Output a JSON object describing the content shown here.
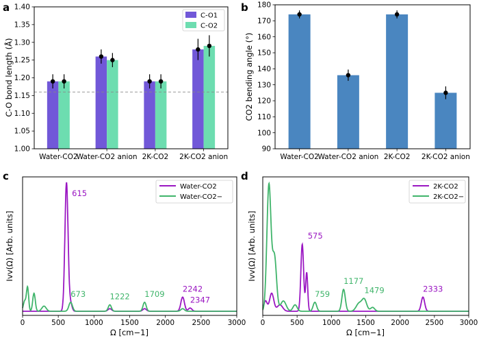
{
  "chart_data": [
    {
      "panel": "a",
      "type": "bar",
      "categories": [
        "Water-CO2",
        "Water-CO2 anion",
        "2K-CO2",
        "2K-CO2 anion"
      ],
      "series": [
        {
          "name": "C-O1",
          "color": "#7158d8",
          "values": [
            1.19,
            1.26,
            1.19,
            1.28
          ],
          "errors": [
            0.02,
            0.02,
            0.02,
            0.03
          ]
        },
        {
          "name": "C-O2",
          "color": "#6dddb0",
          "values": [
            1.19,
            1.25,
            1.19,
            1.29
          ],
          "errors": [
            0.02,
            0.02,
            0.02,
            0.03
          ]
        }
      ],
      "ylabel": "C-O bond length (Å)",
      "ylim": [
        1.0,
        1.4
      ],
      "yticks": [
        "1.00",
        "1.05",
        "1.10",
        "1.15",
        "1.20",
        "1.25",
        "1.30",
        "1.35",
        "1.40"
      ],
      "reference_line": 1.16,
      "legend_position": "top-right"
    },
    {
      "panel": "b",
      "type": "bar",
      "categories": [
        "Water-CO2",
        "Water-CO2 anion",
        "2K-CO2",
        "2K-CO2 anion"
      ],
      "series": [
        {
          "name": "CO2 bending angle",
          "color": "#4a86c0",
          "values": [
            174,
            136,
            174,
            125
          ],
          "errors": [
            2.5,
            3.5,
            2.5,
            4
          ]
        }
      ],
      "ylabel": "CO2 bending angle (°)",
      "ylim": [
        90,
        180
      ],
      "yticks": [
        "90",
        "100",
        "110",
        "120",
        "130",
        "140",
        "150",
        "160",
        "170",
        "180"
      ]
    },
    {
      "panel": "c",
      "type": "line",
      "xlabel": "Ω [cm−1]",
      "ylabel": "Ivv(Ω) [Arb. units]",
      "xlim": [
        0,
        3000
      ],
      "xticks": [
        "0",
        "500",
        "1000",
        "1500",
        "2000",
        "2500",
        "3000"
      ],
      "series": [
        {
          "name": "Water-CO2",
          "color": "#9a16c2",
          "peaks": [
            [
              615,
              1.0,
              22
            ],
            [
              673,
              0.06,
              20
            ],
            [
              1222,
              0.02,
              25
            ],
            [
              1709,
              0.02,
              25
            ],
            [
              2242,
              0.11,
              25
            ],
            [
              2347,
              0.025,
              25
            ]
          ]
        },
        {
          "name": "Water-CO2−",
          "color": "#3fb46a",
          "peaks": [
            [
              30,
              0.08,
              20
            ],
            [
              70,
              0.18,
              15
            ],
            [
              160,
              0.14,
              18
            ],
            [
              300,
              0.04,
              30
            ],
            [
              673,
              0.07,
              25
            ],
            [
              1222,
              0.05,
              22
            ],
            [
              1709,
              0.07,
              22
            ],
            [
              2242,
              0.02,
              25
            ]
          ]
        }
      ],
      "annotations": [
        {
          "text": "615",
          "x": 615,
          "series": "Water-CO2"
        },
        {
          "text": "673",
          "x": 673,
          "series": "Water-CO2−"
        },
        {
          "text": "1222",
          "x": 1222,
          "series": "Water-CO2−"
        },
        {
          "text": "1709",
          "x": 1709,
          "series": "Water-CO2−"
        },
        {
          "text": "2242",
          "x": 2242,
          "series": "Water-CO2"
        },
        {
          "text": "2347",
          "x": 2347,
          "series": "Water-CO2"
        }
      ]
    },
    {
      "panel": "d",
      "type": "line",
      "xlabel": "Ω [cm−1]",
      "ylabel": "Ivv(Ω) [Arb. units]",
      "xlim": [
        0,
        3000
      ],
      "xticks": [
        "0",
        "500",
        "1000",
        "1500",
        "2000",
        "2500",
        "3000"
      ],
      "series": [
        {
          "name": "2K-CO2",
          "color": "#9a16c2",
          "peaks": [
            [
              40,
              0.08,
              25
            ],
            [
              130,
              0.14,
              30
            ],
            [
              250,
              0.05,
              40
            ],
            [
              575,
              0.52,
              20
            ],
            [
              640,
              0.3,
              15
            ],
            [
              2333,
              0.11,
              25
            ]
          ]
        },
        {
          "name": "2K-CO2−",
          "color": "#3fb46a",
          "peaks": [
            [
              90,
              0.98,
              30
            ],
            [
              170,
              0.42,
              30
            ],
            [
              300,
              0.08,
              40
            ],
            [
              470,
              0.05,
              30
            ],
            [
              759,
              0.07,
              25
            ],
            [
              1177,
              0.17,
              25
            ],
            [
              1400,
              0.06,
              40
            ],
            [
              1479,
              0.09,
              35
            ],
            [
              1600,
              0.03,
              30
            ]
          ]
        }
      ],
      "annotations": [
        {
          "text": "575",
          "x": 575,
          "series": "2K-CO2"
        },
        {
          "text": "759",
          "x": 759,
          "series": "2K-CO2−"
        },
        {
          "text": "1177",
          "x": 1177,
          "series": "2K-CO2−"
        },
        {
          "text": "1479",
          "x": 1479,
          "series": "2K-CO2−"
        },
        {
          "text": "2333",
          "x": 2333,
          "series": "2K-CO2"
        }
      ]
    }
  ],
  "panel_labels": [
    "a",
    "b",
    "c",
    "d"
  ],
  "legends": {
    "a": [
      "C-O1",
      "C-O2"
    ],
    "c": [
      "Water-CO2",
      "Water-CO2−"
    ],
    "d": [
      "2K-CO2",
      "2K-CO2−"
    ]
  }
}
